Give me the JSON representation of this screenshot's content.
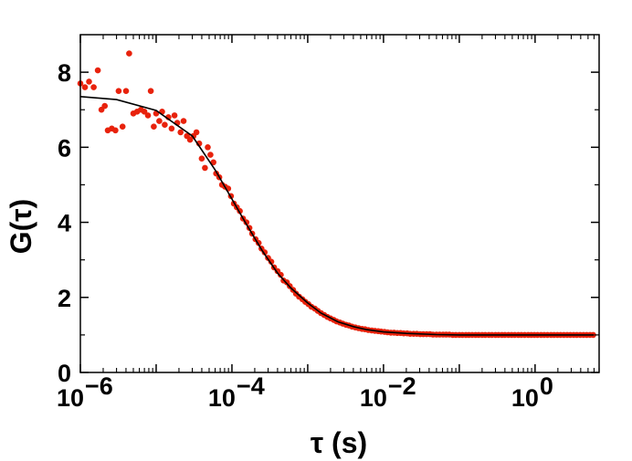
{
  "chart_data": {
    "type": "scatter",
    "xlabel": "τ (s)",
    "ylabel": "G(τ)",
    "x_scale": "log",
    "xlim": [
      1e-06,
      7
    ],
    "ylim": [
      0,
      9
    ],
    "x_ticks": [
      {
        "value": 1e-06,
        "base": "10",
        "exp": "−6"
      },
      {
        "value": 0.0001,
        "base": "10",
        "exp": "−4"
      },
      {
        "value": 0.01,
        "base": "10",
        "exp": "−2"
      },
      {
        "value": 1,
        "base": "10",
        "exp": "0"
      }
    ],
    "y_ticks": [
      {
        "value": 0,
        "label": "0"
      },
      {
        "value": 2,
        "label": "2"
      },
      {
        "value": 4,
        "label": "4"
      },
      {
        "value": 6,
        "label": "6"
      },
      {
        "value": 8,
        "label": "8"
      }
    ],
    "grid": false,
    "legend": "none",
    "series": [
      {
        "kind": "points",
        "color": "#e8220c",
        "points": [
          [
            1e-06,
            7.7
          ],
          [
            1.15e-06,
            7.6
          ],
          [
            1.3e-06,
            7.75
          ],
          [
            1.5e-06,
            7.6
          ],
          [
            1.7e-06,
            8.05
          ],
          [
            1.9e-06,
            7.0
          ],
          [
            2.1e-06,
            7.1
          ],
          [
            2.3e-06,
            6.45
          ],
          [
            2.6e-06,
            6.5
          ],
          [
            2.9e-06,
            6.45
          ],
          [
            3.2e-06,
            7.5
          ],
          [
            3.6e-06,
            6.55
          ],
          [
            4e-06,
            7.5
          ],
          [
            4.4e-06,
            8.5
          ],
          [
            5e-06,
            6.9
          ],
          [
            5.6e-06,
            6.95
          ],
          [
            6.3e-06,
            7.0
          ],
          [
            7e-06,
            6.95
          ],
          [
            7.8e-06,
            6.85
          ],
          [
            8.5e-06,
            7.5
          ],
          [
            9.3e-06,
            6.55
          ],
          [
            1e-05,
            6.9
          ],
          [
            1.1e-05,
            6.7
          ],
          [
            1.2e-05,
            6.95
          ],
          [
            1.3e-05,
            6.6
          ],
          [
            1.45e-05,
            6.8
          ],
          [
            1.6e-05,
            6.5
          ],
          [
            1.75e-05,
            6.85
          ],
          [
            1.9e-05,
            6.65
          ],
          [
            2.1e-05,
            6.4
          ],
          [
            2.3e-05,
            6.7
          ],
          [
            2.55e-05,
            6.3
          ],
          [
            2.8e-05,
            6.2
          ],
          [
            3.1e-05,
            6.3
          ],
          [
            3.4e-05,
            6.4
          ],
          [
            3.7e-05,
            6.1
          ],
          [
            4e-05,
            5.7
          ],
          [
            4.4e-05,
            5.45
          ],
          [
            4.8e-05,
            6.0
          ],
          [
            5.2e-05,
            5.8
          ],
          [
            5.7e-05,
            5.6
          ],
          [
            6.2e-05,
            5.3
          ],
          [
            6.8e-05,
            5.2
          ],
          [
            7.4e-05,
            5.0
          ],
          [
            8.1e-05,
            4.95
          ],
          [
            8.9e-05,
            4.9
          ],
          [
            9.7e-05,
            4.7
          ],
          [
            0.000106,
            4.5
          ],
          [
            0.000116,
            4.4
          ],
          [
            0.000127,
            4.3
          ],
          [
            0.00014,
            4.1
          ],
          [
            0.000155,
            4.0
          ],
          [
            0.00017,
            3.85
          ],
          [
            0.000185,
            3.7
          ],
          [
            0.000205,
            3.55
          ],
          [
            0.000225,
            3.45
          ],
          [
            0.000245,
            3.3
          ],
          [
            0.00027,
            3.2
          ],
          [
            0.0003,
            3.05
          ],
          [
            0.00033,
            2.95
          ],
          [
            0.00036,
            2.8
          ],
          [
            0.0004,
            2.7
          ],
          [
            0.00044,
            2.6
          ],
          [
            0.00048,
            2.45
          ],
          [
            0.00053,
            2.4
          ],
          [
            0.00058,
            2.3
          ],
          [
            0.00064,
            2.2
          ],
          [
            0.0007,
            2.1
          ],
          [
            0.00077,
            2.02
          ],
          [
            0.00085,
            1.95
          ],
          [
            0.00093,
            1.88
          ],
          [
            0.00102,
            1.82
          ],
          [
            0.00112,
            1.75
          ],
          [
            0.00124,
            1.7
          ],
          [
            0.00136,
            1.64
          ],
          [
            0.0015,
            1.58
          ],
          [
            0.00165,
            1.53
          ],
          [
            0.00182,
            1.48
          ],
          [
            0.002,
            1.44
          ],
          [
            0.0022,
            1.4
          ],
          [
            0.0024,
            1.36
          ],
          [
            0.00265,
            1.33
          ],
          [
            0.0029,
            1.3
          ],
          [
            0.0032,
            1.27
          ],
          [
            0.0035,
            1.25
          ],
          [
            0.00385,
            1.22
          ],
          [
            0.00425,
            1.2
          ],
          [
            0.0047,
            1.18
          ],
          [
            0.0052,
            1.16
          ],
          [
            0.0057,
            1.15
          ],
          [
            0.0063,
            1.13
          ],
          [
            0.007,
            1.12
          ],
          [
            0.0077,
            1.11
          ],
          [
            0.0085,
            1.1
          ],
          [
            0.0093,
            1.09
          ],
          [
            0.0103,
            1.08
          ],
          [
            0.0113,
            1.07
          ],
          [
            0.0125,
            1.06
          ],
          [
            0.0138,
            1.06
          ],
          [
            0.0152,
            1.05
          ],
          [
            0.0168,
            1.05
          ],
          [
            0.0185,
            1.04
          ],
          [
            0.0205,
            1.04
          ],
          [
            0.0225,
            1.03
          ],
          [
            0.025,
            1.03
          ],
          [
            0.0275,
            1.03
          ],
          [
            0.0305,
            1.02
          ],
          [
            0.0335,
            1.02
          ],
          [
            0.037,
            1.02
          ],
          [
            0.041,
            1.02
          ],
          [
            0.045,
            1.01
          ],
          [
            0.05,
            1.01
          ],
          [
            0.055,
            1.01
          ],
          [
            0.061,
            1.01
          ],
          [
            0.067,
            1.01
          ],
          [
            0.074,
            1.01
          ],
          [
            0.082,
            1.0
          ],
          [
            0.09,
            1.0
          ],
          [
            0.1,
            1.0
          ],
          [
            0.11,
            1.0
          ],
          [
            0.122,
            1.0
          ],
          [
            0.134,
            1.0
          ],
          [
            0.148,
            1.0
          ],
          [
            0.164,
            1.0
          ],
          [
            0.18,
            1.0
          ],
          [
            0.2,
            1.0
          ],
          [
            0.22,
            1.0
          ],
          [
            0.245,
            1.0
          ],
          [
            0.27,
            1.0
          ],
          [
            0.3,
            1.0
          ],
          [
            0.33,
            1.0
          ],
          [
            0.365,
            1.0
          ],
          [
            0.4,
            1.0
          ],
          [
            0.445,
            1.0
          ],
          [
            0.49,
            1.0
          ],
          [
            0.54,
            1.0
          ],
          [
            0.6,
            1.0
          ],
          [
            0.66,
            1.0
          ],
          [
            0.73,
            1.0
          ],
          [
            0.81,
            1.0
          ],
          [
            0.89,
            1.0
          ],
          [
            0.98,
            1.0
          ],
          [
            1.08,
            1.0
          ],
          [
            1.2,
            1.0
          ],
          [
            1.32,
            1.0
          ],
          [
            1.46,
            1.0
          ],
          [
            1.62,
            1.0
          ],
          [
            1.78,
            1.0
          ],
          [
            1.97,
            1.0
          ],
          [
            2.17,
            1.0
          ],
          [
            2.4,
            1.0
          ],
          [
            2.65,
            1.0
          ],
          [
            2.92,
            1.0
          ],
          [
            3.23,
            1.0
          ],
          [
            3.56,
            1.0
          ],
          [
            3.94,
            1.0
          ],
          [
            4.35,
            1.0
          ],
          [
            4.8,
            1.0
          ],
          [
            5.3,
            1.0
          ],
          [
            5.85,
            1.0
          ]
        ]
      },
      {
        "kind": "line",
        "color": "#000000",
        "points": [
          [
            1e-06,
            7.35
          ],
          [
            3e-06,
            7.27
          ],
          [
            1e-05,
            6.98
          ],
          [
            3e-05,
            6.3
          ],
          [
            6e-05,
            5.4
          ],
          [
            0.0001,
            4.62
          ],
          [
            0.00015,
            4.0
          ],
          [
            0.00025,
            3.25
          ],
          [
            0.0004,
            2.65
          ],
          [
            0.0006,
            2.25
          ],
          [
            0.001,
            1.85
          ],
          [
            0.0015,
            1.58
          ],
          [
            0.0025,
            1.35
          ],
          [
            0.004,
            1.22
          ],
          [
            0.006,
            1.14
          ],
          [
            0.01,
            1.08
          ],
          [
            0.02,
            1.04
          ],
          [
            0.05,
            1.01
          ],
          [
            0.1,
            1.0
          ],
          [
            1.0,
            1.0
          ],
          [
            6.0,
            1.0
          ]
        ]
      }
    ]
  }
}
